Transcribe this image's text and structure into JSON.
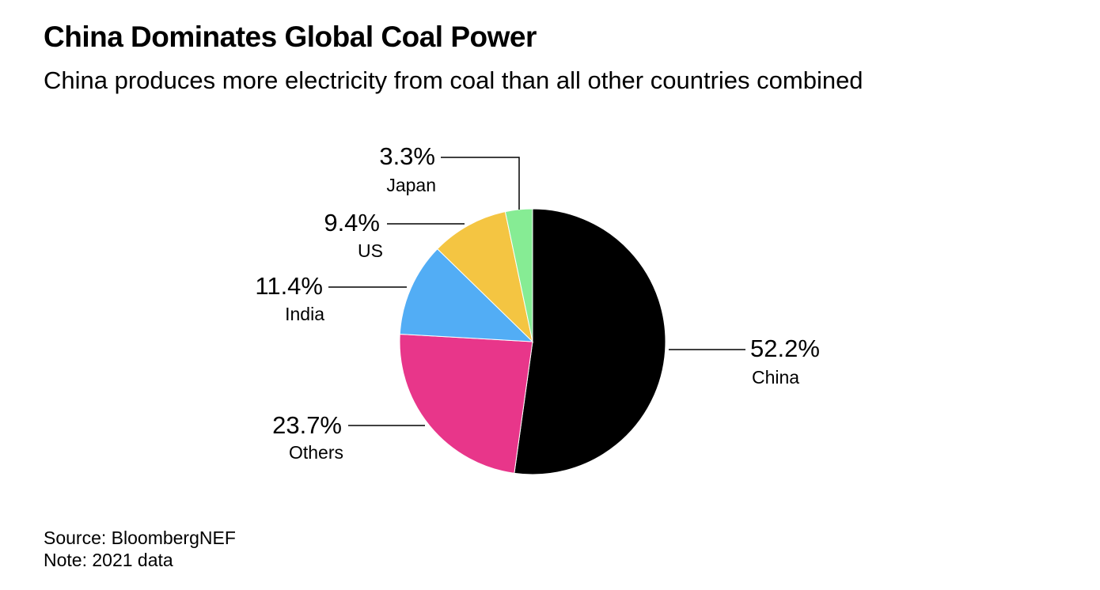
{
  "header": {
    "title": "China Dominates Global Coal Power",
    "subtitle": "China produces more electricity from coal than all other countries combined"
  },
  "footer": {
    "source": "Source: BloombergNEF",
    "note": "Note: 2021 data"
  },
  "chart_data": {
    "type": "pie",
    "title": "China Dominates Global Coal Power",
    "subtitle": "China produces more electricity from coal than all other countries combined",
    "slices": [
      {
        "name": "China",
        "value": 52.2,
        "label": "52.2%",
        "color": "#000000"
      },
      {
        "name": "Others",
        "value": 23.7,
        "label": "23.7%",
        "color": "#e8368a"
      },
      {
        "name": "India",
        "value": 11.4,
        "label": "11.4%",
        "color": "#52adf5"
      },
      {
        "name": "US",
        "value": 9.4,
        "label": "9.4%",
        "color": "#f4c542"
      },
      {
        "name": "Japan",
        "value": 3.3,
        "label": "3.3%",
        "color": "#86ec94"
      }
    ],
    "start_angle": "12 o'clock",
    "direction": "clockwise",
    "legend": "none"
  }
}
